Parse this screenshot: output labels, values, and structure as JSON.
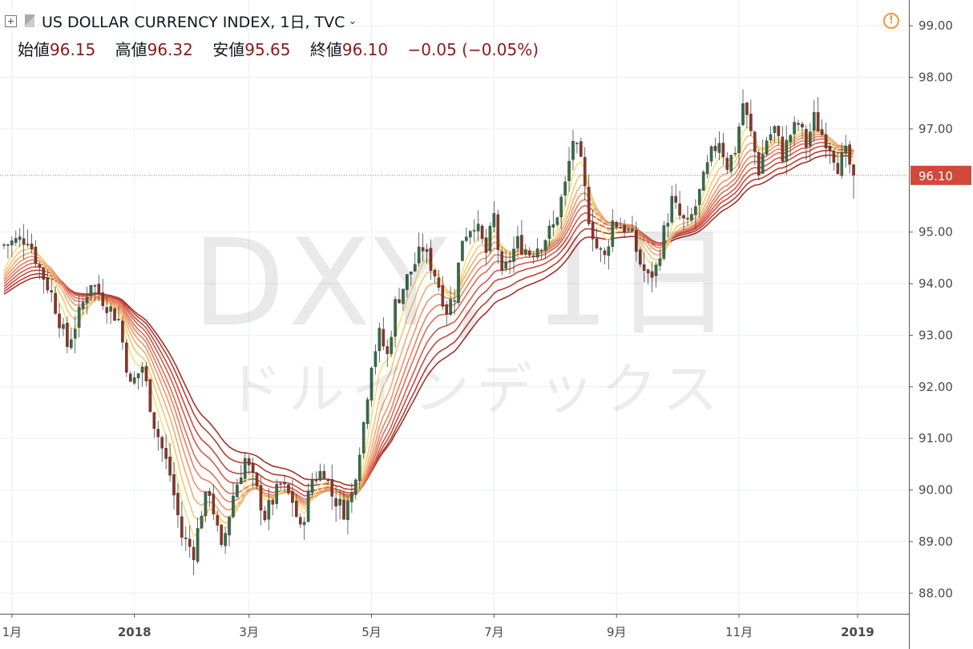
{
  "header": {
    "symbol_title": "US DOLLAR CURRENCY INDEX, 1日, TVC",
    "open_label": "始値",
    "open_value": "96.15",
    "high_label": "高値",
    "high_value": "96.32",
    "low_label": "安値",
    "low_value": "95.65",
    "close_label": "終値",
    "close_value": "96.10",
    "change": "−0.05 (−0.05%)"
  },
  "watermark": {
    "symbol": "DXY, 1日",
    "description": "ドルインデックス"
  },
  "chart_data": {
    "type": "candlestick",
    "title": "US DOLLAR CURRENCY INDEX, 1日, TVC",
    "y_ticks": [
      "99.00",
      "98.00",
      "97.00",
      "95.00",
      "94.00",
      "93.00",
      "92.00",
      "91.00",
      "90.00",
      "89.00",
      "88.00"
    ],
    "ylim": [
      87.6,
      99.5
    ],
    "x_ticks": [
      {
        "label": "1月",
        "day": 2
      },
      {
        "label": "2018",
        "day": 33
      },
      {
        "label": "3月",
        "day": 62
      },
      {
        "label": "5月",
        "day": 93
      },
      {
        "label": "7月",
        "day": 124
      },
      {
        "label": "9月",
        "day": 155
      },
      {
        "label": "11月",
        "day": 186
      },
      {
        "label": "2019",
        "day": 216
      }
    ],
    "x_range_days": [
      0,
      230
    ],
    "last_price": 96.1,
    "last_price_label": "96.10",
    "price_path": [
      [
        0,
        94.75
      ],
      [
        6,
        94.9
      ],
      [
        9,
        94.3
      ],
      [
        12,
        93.8
      ],
      [
        16,
        92.8
      ],
      [
        19,
        93.4
      ],
      [
        22,
        94.05
      ],
      [
        25,
        93.7
      ],
      [
        29,
        93.3
      ],
      [
        32,
        92.0
      ],
      [
        35,
        92.4
      ],
      [
        38,
        91.3
      ],
      [
        42,
        90.3
      ],
      [
        45,
        89.1
      ],
      [
        48,
        88.8
      ],
      [
        50,
        89.6
      ],
      [
        52,
        90.0
      ],
      [
        55,
        88.8
      ],
      [
        58,
        89.9
      ],
      [
        61,
        90.6
      ],
      [
        63,
        90.2
      ],
      [
        66,
        89.5
      ],
      [
        70,
        90.1
      ],
      [
        73,
        89.8
      ],
      [
        75,
        89.2
      ],
      [
        78,
        90.2
      ],
      [
        81,
        90.4
      ],
      [
        83,
        89.9
      ],
      [
        86,
        89.6
      ],
      [
        88,
        89.9
      ],
      [
        91,
        91.3
      ],
      [
        93,
        92.5
      ],
      [
        95,
        93.0
      ],
      [
        97,
        92.6
      ],
      [
        99,
        93.6
      ],
      [
        102,
        94.1
      ],
      [
        106,
        94.7
      ],
      [
        109,
        94.2
      ],
      [
        112,
        93.5
      ],
      [
        114,
        93.8
      ],
      [
        116,
        94.9
      ],
      [
        119,
        95.2
      ],
      [
        122,
        94.6
      ],
      [
        124,
        95.3
      ],
      [
        126,
        94.1
      ],
      [
        128,
        94.5
      ],
      [
        130,
        94.8
      ],
      [
        133,
        94.6
      ],
      [
        136,
        94.8
      ],
      [
        139,
        95.1
      ],
      [
        142,
        95.9
      ],
      [
        144,
        96.8
      ],
      [
        146,
        96.3
      ],
      [
        148,
        95.3
      ],
      [
        150,
        94.7
      ],
      [
        152,
        94.5
      ],
      [
        154,
        95.2
      ],
      [
        157,
        95.1
      ],
      [
        159,
        94.9
      ],
      [
        161,
        94.4
      ],
      [
        163,
        94.1
      ],
      [
        165,
        94.3
      ],
      [
        167,
        95.0
      ],
      [
        169,
        95.6
      ],
      [
        171,
        95.3
      ],
      [
        173,
        95.1
      ],
      [
        175,
        95.5
      ],
      [
        177,
        96.0
      ],
      [
        179,
        96.5
      ],
      [
        181,
        96.8
      ],
      [
        183,
        96.3
      ],
      [
        185,
        96.6
      ],
      [
        187,
        97.5
      ],
      [
        189,
        96.9
      ],
      [
        191,
        96.2
      ],
      [
        193,
        96.8
      ],
      [
        195,
        97.0
      ],
      [
        197,
        96.5
      ],
      [
        199,
        96.9
      ],
      [
        201,
        97.1
      ],
      [
        203,
        96.7
      ],
      [
        205,
        97.2
      ],
      [
        207,
        96.9
      ],
      [
        209,
        96.7
      ],
      [
        211,
        96.3
      ],
      [
        213,
        96.5
      ],
      [
        215,
        96.1
      ]
    ]
  },
  "colors": {
    "up": "#336f46",
    "down": "#8f3326",
    "ribbon": [
      "#f6e07a",
      "#f3c678",
      "#efad72",
      "#ec956a",
      "#e87f60",
      "#e06b55",
      "#d5584a",
      "#c74a3f",
      "#b63d34",
      "#a0322b"
    ],
    "price_line": "#c0392b",
    "price_label_bg": "#d0493a",
    "alert": "#ec9a3c"
  }
}
